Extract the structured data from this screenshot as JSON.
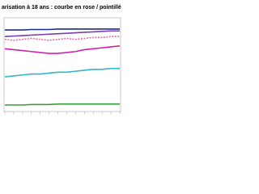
{
  "chart_data": {
    "type": "line",
    "title": "arisation à 18 ans : courbe en rose / pointillé",
    "categories": [
      null,
      null,
      null,
      null,
      null,
      null,
      null,
      null,
      null,
      null,
      null,
      null,
      null,
      null
    ],
    "ylim": [
      0,
      100
    ],
    "series": [
      {
        "color": "#1f2a8c",
        "dash": false,
        "values": [
          87,
          87,
          87,
          87.5,
          87.5,
          87.5,
          88,
          88,
          88,
          88,
          88,
          88,
          88,
          88
        ]
      },
      {
        "color": "#7a3fb0",
        "dash": false,
        "values": [
          80,
          80.5,
          81,
          81.5,
          82,
          82.5,
          83,
          83.5,
          84,
          84.5,
          85,
          85.5,
          86,
          86
        ]
      },
      {
        "color": "#e86aa8",
        "dash": true,
        "values": [
          77,
          76,
          77,
          78,
          77,
          76,
          77,
          78,
          77,
          78,
          79,
          79,
          80,
          80
        ]
      },
      {
        "color": "#d020b0",
        "dash": false,
        "values": [
          67,
          66,
          65,
          64,
          63,
          62,
          62,
          63,
          64,
          66,
          67,
          68,
          69,
          70
        ]
      },
      {
        "color": "#30b8c0",
        "dash": false,
        "values": [
          37,
          38,
          39,
          40,
          40,
          41,
          42,
          42,
          43,
          44,
          45,
          45,
          46,
          46
        ]
      },
      {
        "color": "#3a9a3a",
        "dash": false,
        "values": [
          7,
          7,
          7,
          7.5,
          7.5,
          7.5,
          8,
          8,
          8,
          8,
          8,
          8,
          8,
          8
        ]
      }
    ]
  }
}
